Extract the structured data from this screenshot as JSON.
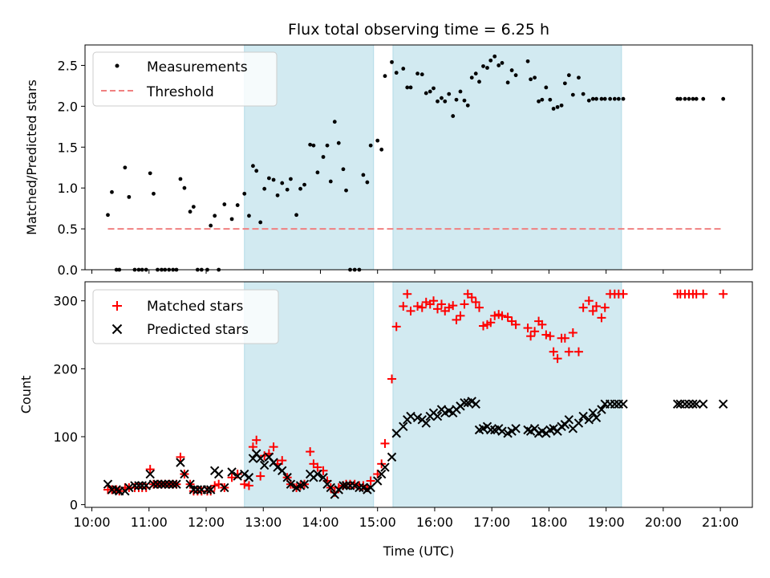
{
  "chart_data": [
    {
      "type": "scatter",
      "title": "Flux total observing time = 6.25 h",
      "xlabel": "",
      "ylabel": "Matched/Predicted stars",
      "xlim": [
        9.88,
        21.56
      ],
      "ylim": [
        0,
        2.75
      ],
      "yticks": [
        0.0,
        0.5,
        1.0,
        1.5,
        2.0,
        2.5
      ],
      "ytick_labels": [
        "0.0",
        "0.5",
        "1.0",
        "1.5",
        "2.0",
        "2.5"
      ],
      "shaded_intervals": [
        [
          12.67,
          14.93
        ],
        [
          15.27,
          19.27
        ]
      ],
      "shade_color": "#add8e6",
      "grid": false,
      "legend": "top-left",
      "series": [
        {
          "name": "Measurements",
          "marker": "dot",
          "color": "#000000",
          "x": [
            10.28,
            10.35,
            10.43,
            10.48,
            10.58,
            10.65,
            10.75,
            10.82,
            10.88,
            10.95,
            11.02,
            11.08,
            11.15,
            11.22,
            11.28,
            11.35,
            11.42,
            11.48,
            11.55,
            11.62,
            11.72,
            11.78,
            11.85,
            11.92,
            12.02,
            12.08,
            12.15,
            12.22,
            12.32,
            12.45,
            12.55,
            12.67,
            12.75,
            12.82,
            12.88,
            12.95,
            13.02,
            13.1,
            13.18,
            13.25,
            13.33,
            13.42,
            13.48,
            13.58,
            13.65,
            13.72,
            13.82,
            13.88,
            13.95,
            14.05,
            14.12,
            14.18,
            14.25,
            14.32,
            14.4,
            14.45,
            14.52,
            14.6,
            14.68,
            14.75,
            14.82,
            14.88,
            15.0,
            15.07,
            15.13,
            15.25,
            15.33,
            15.45,
            15.52,
            15.58,
            15.7,
            15.78,
            15.85,
            15.92,
            15.98,
            16.05,
            16.12,
            16.18,
            16.25,
            16.32,
            16.38,
            16.45,
            16.52,
            16.58,
            16.65,
            16.72,
            16.78,
            16.85,
            16.92,
            16.98,
            17.05,
            17.12,
            17.18,
            17.28,
            17.35,
            17.42,
            17.63,
            17.68,
            17.75,
            17.82,
            17.88,
            17.95,
            18.02,
            18.08,
            18.15,
            18.22,
            18.28,
            18.35,
            18.42,
            18.52,
            18.6,
            18.7,
            18.77,
            18.83,
            18.92,
            18.98,
            19.07,
            19.15,
            19.22,
            19.3,
            20.25,
            20.3,
            20.38,
            20.45,
            20.52,
            20.58,
            20.7,
            21.05
          ],
          "y": [
            0.67,
            0.95,
            0.0,
            0.0,
            1.25,
            0.89,
            0.0,
            0.0,
            0.0,
            0.0,
            1.18,
            0.93,
            0.0,
            0.0,
            0.0,
            0.0,
            0.0,
            0.0,
            1.11,
            1.0,
            0.71,
            0.77,
            0.0,
            0.0,
            0.0,
            0.54,
            0.66,
            0.0,
            0.8,
            0.62,
            0.79,
            0.93,
            0.66,
            1.27,
            1.21,
            0.58,
            0.99,
            1.12,
            1.1,
            0.91,
            1.06,
            0.98,
            1.11,
            0.67,
            0.99,
            1.04,
            1.53,
            1.52,
            1.19,
            1.38,
            1.52,
            1.08,
            1.81,
            1.55,
            1.23,
            0.97,
            0.0,
            0.0,
            0.0,
            1.16,
            1.07,
            1.52,
            1.58,
            1.47,
            2.37,
            2.54,
            2.41,
            2.46,
            2.23,
            2.23,
            2.4,
            2.39,
            2.16,
            2.18,
            2.22,
            2.06,
            2.1,
            2.06,
            2.15,
            1.88,
            2.08,
            2.18,
            2.07,
            2.01,
            2.35,
            2.4,
            2.3,
            2.49,
            2.47,
            2.56,
            2.61,
            2.5,
            2.53,
            2.29,
            2.44,
            2.38,
            2.55,
            2.33,
            2.35,
            2.06,
            2.08,
            2.23,
            2.08,
            1.97,
            1.99,
            2.01,
            2.28,
            2.38,
            2.14,
            2.35,
            2.15,
            2.07,
            2.09,
            2.09,
            2.09,
            2.09,
            2.09,
            2.09,
            2.09,
            2.09,
            2.09,
            2.09,
            2.09,
            2.09,
            2.09,
            2.09,
            2.09,
            2.09
          ]
        },
        {
          "name": "Threshold",
          "marker": "dashed-line",
          "color": "#f08080",
          "x": [
            10.28,
            21.05
          ],
          "y": [
            0.5,
            0.5
          ]
        }
      ]
    },
    {
      "type": "scatter",
      "title": "",
      "xlabel": "Time (UTC)",
      "ylabel": "Count",
      "xlim": [
        9.88,
        21.56
      ],
      "ylim": [
        -4,
        328
      ],
      "xticks": [
        10,
        11,
        12,
        13,
        14,
        15,
        16,
        17,
        18,
        19,
        20,
        21
      ],
      "xtick_labels": [
        "10:00",
        "11:00",
        "12:00",
        "13:00",
        "14:00",
        "15:00",
        "16:00",
        "17:00",
        "18:00",
        "19:00",
        "20:00",
        "21:00"
      ],
      "yticks": [
        0,
        100,
        200,
        300
      ],
      "ytick_labels": [
        "0",
        "100",
        "200",
        "300"
      ],
      "shaded_intervals": [
        [
          12.67,
          14.93
        ],
        [
          15.27,
          19.27
        ]
      ],
      "shade_color": "#add8e6",
      "grid": false,
      "legend": "top-left",
      "series": [
        {
          "name": "Matched stars",
          "marker": "plus",
          "color": "#ff0000",
          "x": [
            10.28,
            10.35,
            10.43,
            10.48,
            10.58,
            10.65,
            10.75,
            10.82,
            10.88,
            10.95,
            11.02,
            11.08,
            11.15,
            11.22,
            11.28,
            11.35,
            11.42,
            11.48,
            11.55,
            11.62,
            11.72,
            11.78,
            11.85,
            11.92,
            12.02,
            12.08,
            12.15,
            12.22,
            12.32,
            12.45,
            12.55,
            12.67,
            12.75,
            12.82,
            12.88,
            12.95,
            13.02,
            13.1,
            13.18,
            13.25,
            13.33,
            13.42,
            13.48,
            13.58,
            13.65,
            13.72,
            13.82,
            13.88,
            13.95,
            14.05,
            14.12,
            14.18,
            14.25,
            14.32,
            14.4,
            14.45,
            14.52,
            14.6,
            14.68,
            14.75,
            14.82,
            14.88,
            15.0,
            15.07,
            15.13,
            15.25,
            15.33,
            15.45,
            15.52,
            15.58,
            15.7,
            15.78,
            15.85,
            15.92,
            15.98,
            16.05,
            16.12,
            16.18,
            16.25,
            16.32,
            16.38,
            16.45,
            16.52,
            16.58,
            16.65,
            16.72,
            16.78,
            16.85,
            16.92,
            16.98,
            17.05,
            17.12,
            17.18,
            17.28,
            17.35,
            17.42,
            17.63,
            17.68,
            17.75,
            17.82,
            17.88,
            17.95,
            18.02,
            18.08,
            18.15,
            18.22,
            18.28,
            18.35,
            18.42,
            18.52,
            18.6,
            18.7,
            18.77,
            18.83,
            18.92,
            18.98,
            19.07,
            19.15,
            19.22,
            19.3,
            20.25,
            20.3,
            20.38,
            20.45,
            20.52,
            20.58,
            20.7,
            21.05
          ],
          "y": [
            22,
            22,
            22,
            20,
            25,
            25,
            25,
            25,
            25,
            25,
            52,
            30,
            30,
            30,
            30,
            30,
            30,
            30,
            70,
            45,
            30,
            20,
            20,
            20,
            20,
            20,
            28,
            30,
            25,
            40,
            45,
            30,
            28,
            85,
            95,
            42,
            72,
            75,
            85,
            60,
            65,
            40,
            30,
            25,
            28,
            30,
            78,
            60,
            55,
            50,
            35,
            25,
            18,
            25,
            28,
            30,
            30,
            30,
            28,
            28,
            25,
            35,
            45,
            60,
            90,
            185,
            262,
            292,
            310,
            285,
            292,
            290,
            298,
            295,
            300,
            288,
            295,
            285,
            290,
            293,
            272,
            278,
            295,
            310,
            305,
            298,
            290,
            263,
            265,
            268,
            278,
            280,
            278,
            276,
            270,
            265,
            260,
            248,
            255,
            270,
            265,
            250,
            248,
            225,
            215,
            245,
            245,
            225,
            253,
            225,
            290,
            300,
            285,
            292,
            275,
            290,
            310,
            310,
            310,
            310,
            310,
            310,
            310,
            310,
            310,
            310,
            310,
            310
          ],
          "y_note_count": 0
        },
        {
          "name": "Predicted stars",
          "marker": "x",
          "color": "#000000",
          "x": [
            10.28,
            10.35,
            10.43,
            10.48,
            10.58,
            10.65,
            10.75,
            10.82,
            10.88,
            10.95,
            11.02,
            11.08,
            11.15,
            11.22,
            11.28,
            11.35,
            11.42,
            11.48,
            11.55,
            11.62,
            11.72,
            11.78,
            11.85,
            11.92,
            12.02,
            12.08,
            12.15,
            12.22,
            12.32,
            12.45,
            12.55,
            12.67,
            12.75,
            12.82,
            12.88,
            12.95,
            13.02,
            13.1,
            13.18,
            13.25,
            13.33,
            13.42,
            13.48,
            13.58,
            13.65,
            13.72,
            13.82,
            13.88,
            13.95,
            14.05,
            14.12,
            14.18,
            14.25,
            14.32,
            14.4,
            14.45,
            14.52,
            14.6,
            14.68,
            14.75,
            14.82,
            14.88,
            15.0,
            15.07,
            15.13,
            15.25,
            15.33,
            15.45,
            15.52,
            15.58,
            15.7,
            15.78,
            15.85,
            15.92,
            15.98,
            16.05,
            16.12,
            16.18,
            16.25,
            16.32,
            16.38,
            16.45,
            16.52,
            16.58,
            16.65,
            16.72,
            16.78,
            16.85,
            16.92,
            16.98,
            17.05,
            17.12,
            17.18,
            17.28,
            17.35,
            17.42,
            17.63,
            17.68,
            17.75,
            17.82,
            17.88,
            17.95,
            18.02,
            18.08,
            18.15,
            18.22,
            18.28,
            18.35,
            18.42,
            18.52,
            18.6,
            18.7,
            18.77,
            18.83,
            18.92,
            18.98,
            19.07,
            19.15,
            19.22,
            19.3,
            20.25,
            20.3,
            20.38,
            20.45,
            20.52,
            20.58,
            20.7,
            21.05
          ],
          "y": [
            30,
            22,
            22,
            20,
            20,
            25,
            28,
            28,
            28,
            28,
            45,
            30,
            30,
            30,
            30,
            30,
            30,
            30,
            62,
            45,
            30,
            22,
            22,
            22,
            22,
            22,
            50,
            45,
            25,
            48,
            42,
            45,
            40,
            68,
            75,
            68,
            58,
            70,
            62,
            55,
            50,
            40,
            30,
            25,
            28,
            30,
            45,
            40,
            45,
            40,
            30,
            25,
            15,
            22,
            28,
            28,
            28,
            28,
            25,
            25,
            22,
            25,
            35,
            45,
            55,
            70,
            105,
            115,
            125,
            130,
            128,
            125,
            120,
            130,
            135,
            130,
            140,
            135,
            138,
            135,
            140,
            145,
            150,
            150,
            152,
            148,
            110,
            112,
            115,
            110,
            110,
            112,
            108,
            105,
            108,
            112,
            110,
            108,
            112,
            105,
            108,
            105,
            110,
            112,
            108,
            115,
            118,
            125,
            112,
            120,
            130,
            125,
            135,
            128,
            140,
            148,
            148,
            148,
            148,
            148,
            148,
            148,
            148,
            148,
            148,
            148,
            148,
            148
          ]
        }
      ]
    }
  ]
}
